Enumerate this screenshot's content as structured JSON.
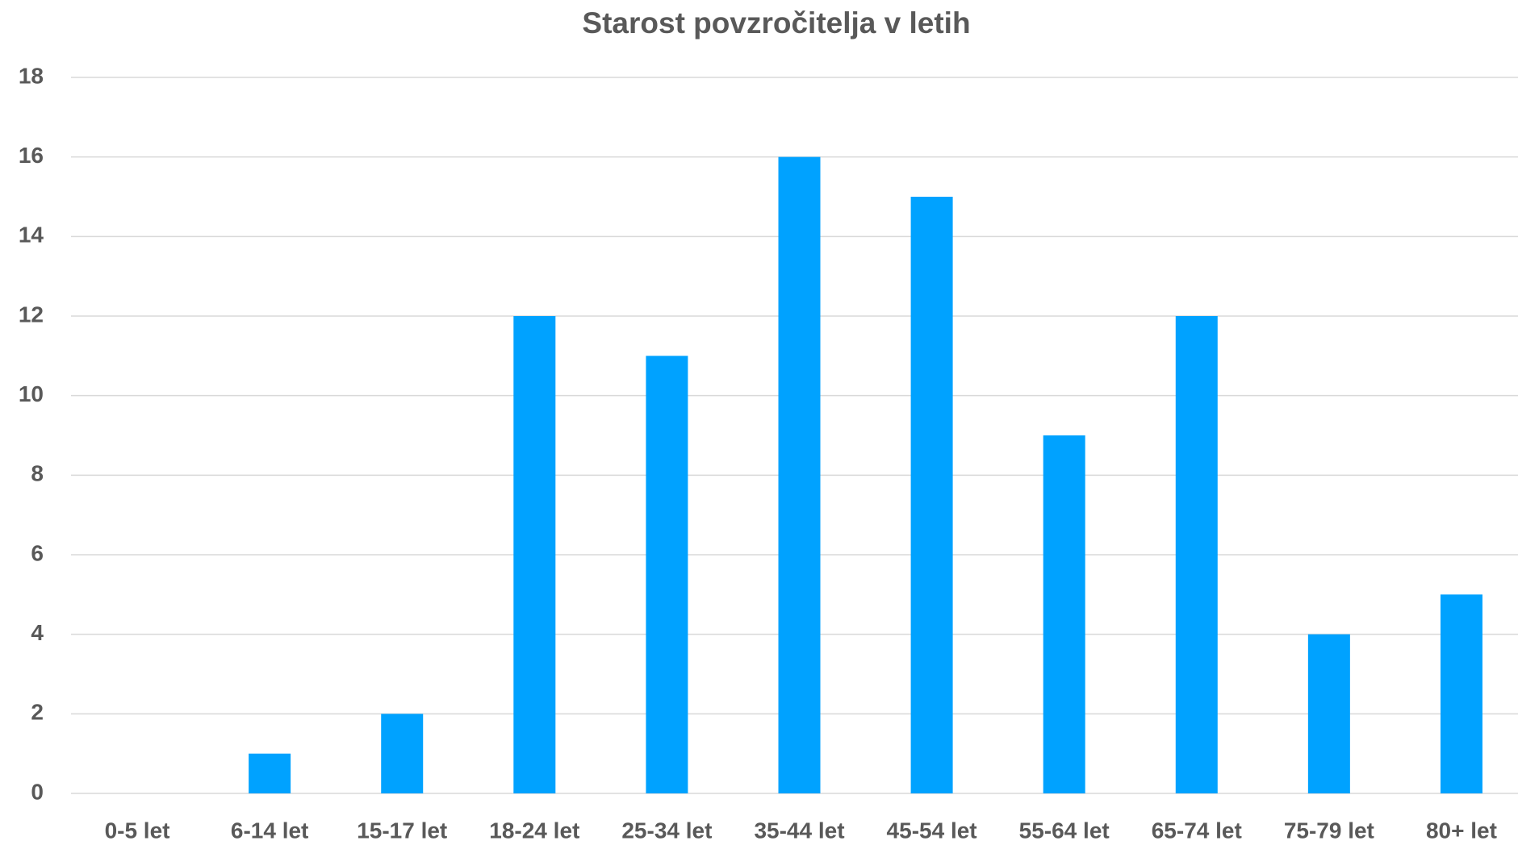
{
  "chart_data": {
    "type": "bar",
    "title": "Starost povzročitelja v letih",
    "categories": [
      "0-5 let",
      "6-14 let",
      "15-17 let",
      "18-24 let",
      "25-34 let",
      "35-44 let",
      "45-54 let",
      "55-64 let",
      "65-74 let",
      "75-79 let",
      "80+ let"
    ],
    "values": [
      0,
      1,
      2,
      12,
      11,
      16,
      15,
      9,
      12,
      4,
      5
    ],
    "color": "#00a2ff",
    "ylim": [
      0,
      18
    ],
    "yticks": [
      0,
      2,
      4,
      6,
      8,
      10,
      12,
      14,
      16,
      18
    ],
    "grid": true
  }
}
